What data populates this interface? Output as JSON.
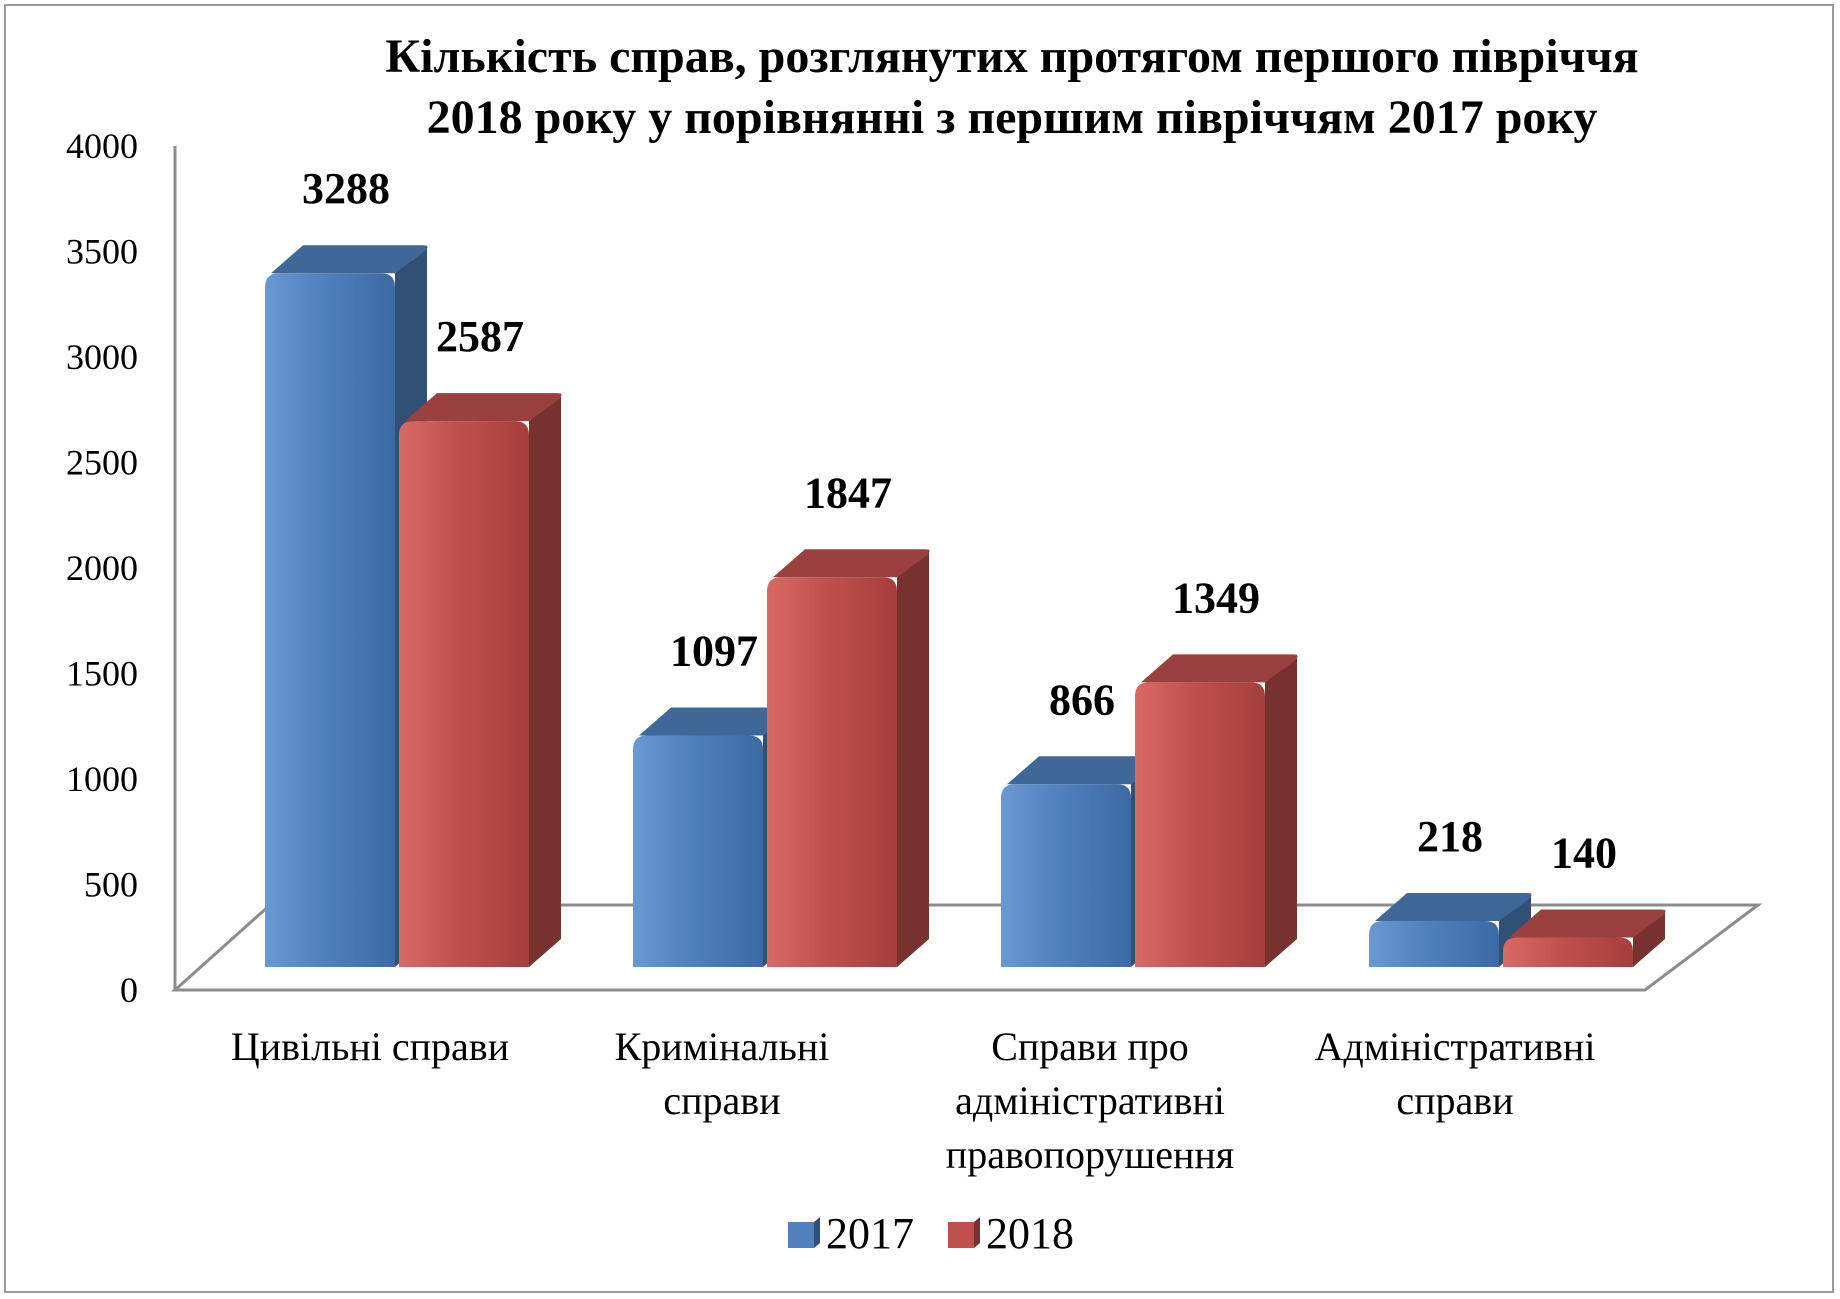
{
  "chart_data": {
    "type": "bar",
    "title_lines": [
      "Кількість справ, розглянутих протягом першого півріччя",
      "2018 року у порівнянні з  першим півріччям 2017 року"
    ],
    "categories": [
      [
        "Цивільні справи"
      ],
      [
        "Кримінальні",
        "справи"
      ],
      [
        "Справи про",
        "адміністративні",
        "правопорушення"
      ],
      [
        "Адміністративні",
        "справи"
      ]
    ],
    "series": [
      {
        "name": "2017",
        "values": [
          3288,
          1097,
          866,
          218
        ],
        "color": "#4f81bd"
      },
      {
        "name": "2018",
        "values": [
          2587,
          1847,
          1349,
          140
        ],
        "color": "#c0504d"
      }
    ],
    "y_ticks": [
      "0",
      "500",
      "1000",
      "1500",
      "2000",
      "2500",
      "3000",
      "3500",
      "4000"
    ],
    "ylim": [
      0,
      4000
    ],
    "legend_position": "bottom",
    "grid": false,
    "bar_style": "3d"
  }
}
